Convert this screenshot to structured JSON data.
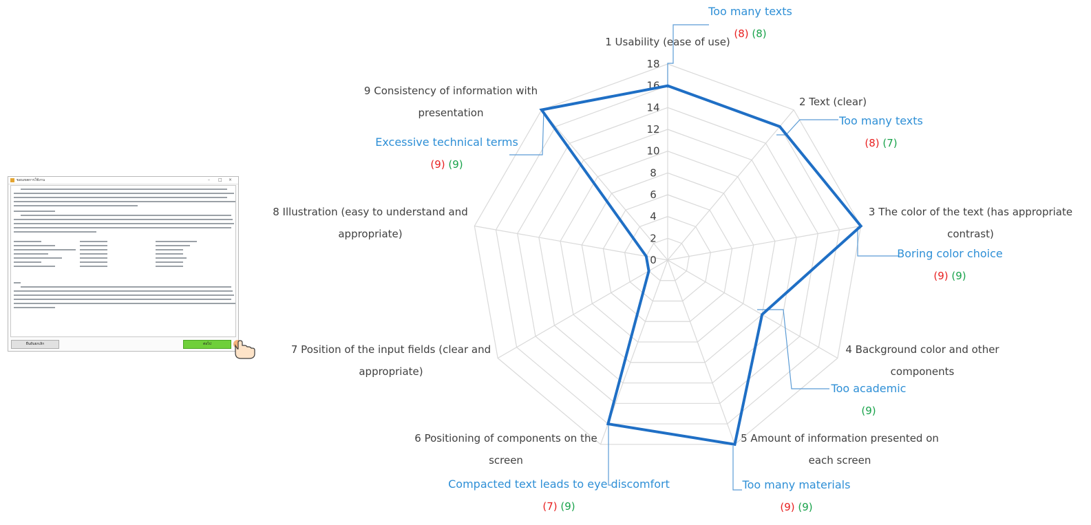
{
  "thumbnail": {
    "window_title": "ขอบเขตการใช้งาน",
    "window_controls": [
      "–",
      "□",
      "×"
    ],
    "cancel_label": "ยืนยันยกเลิก",
    "next_label": "ต่อไป",
    "cursor_icon": "pointing-hand-icon",
    "colors": {
      "next_button": "#6fcf3a",
      "app_icon": "#e3a532"
    }
  },
  "chart_data": {
    "type": "radar",
    "title": "",
    "axes": [
      "1 Usability (ease of use)",
      "2 Text (clear)",
      "3 The color of the text (has appropriate contrast)",
      "4 Background color and other components",
      "5 Amount of information presented on each screen",
      "6 Positioning of components on the screen",
      "7 Position of the input fields (clear and appropriate)",
      "8 Illustration (easy to understand and appropriate)",
      "9 Consistency of information with presentation"
    ],
    "axis_label_lines": [
      [
        "1 Usability (ease of use)"
      ],
      [
        "2 Text (clear)"
      ],
      [
        "3 The color of the text (has appropriate",
        "contrast)"
      ],
      [
        "4 Background color and other",
        "components"
      ],
      [
        "5 Amount of information presented on",
        "each screen"
      ],
      [
        "6 Positioning of components on the",
        "screen"
      ],
      [
        "7 Position of the input fields (clear and",
        "appropriate)"
      ],
      [
        "8 Illustration (easy to understand and",
        "appropriate)"
      ],
      [
        "9 Consistency of information with",
        "presentation"
      ]
    ],
    "values": [
      16,
      16,
      18,
      10,
      18,
      16,
      2,
      2,
      18
    ],
    "rlim": [
      0,
      18
    ],
    "ticks": [
      "0",
      "2",
      "4",
      "6",
      "8",
      "10",
      "12",
      "14",
      "16",
      "18"
    ],
    "grid": true,
    "line_color": "#1f6fc5",
    "grid_color": "#d9d9d9",
    "annotations": [
      {
        "axis": 1,
        "text": "Too many texts",
        "counts": [
          {
            "text": "(8)",
            "color": "red"
          },
          {
            "text": "(8)",
            "color": "green"
          }
        ]
      },
      {
        "axis": 2,
        "text": "Too many texts",
        "counts": [
          {
            "text": "(8)",
            "color": "red"
          },
          {
            "text": "(7)",
            "color": "green"
          }
        ]
      },
      {
        "axis": 3,
        "text": "Boring color choice",
        "counts": [
          {
            "text": "(9)",
            "color": "red"
          },
          {
            "text": "(9)",
            "color": "green"
          }
        ]
      },
      {
        "axis": 4,
        "text": "Too academic",
        "counts": [
          {
            "text": "(9)",
            "color": "green"
          }
        ]
      },
      {
        "axis": 5,
        "text": "Too many materials",
        "counts": [
          {
            "text": "(9)",
            "color": "red"
          },
          {
            "text": "(9)",
            "color": "green"
          }
        ]
      },
      {
        "axis": 6,
        "text": "Compacted text leads to eye discomfort",
        "counts": [
          {
            "text": "(7)",
            "color": "red"
          },
          {
            "text": "(9)",
            "color": "green"
          }
        ]
      },
      {
        "axis": 9,
        "text": "Excessive technical terms",
        "counts": [
          {
            "text": "(9)",
            "color": "red"
          },
          {
            "text": "(9)",
            "color": "green"
          }
        ]
      }
    ],
    "count_colors": {
      "red": "#e82020",
      "green": "#18a24a"
    },
    "annotation_color": "#2e8fd6"
  }
}
